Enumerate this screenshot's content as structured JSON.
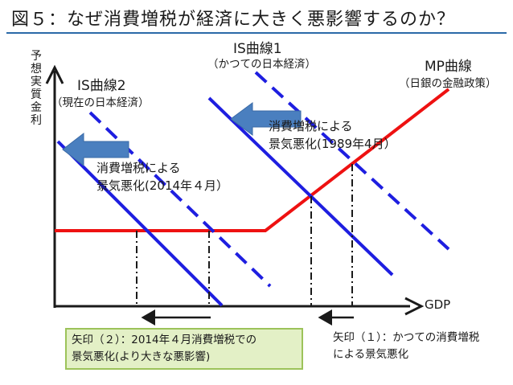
{
  "title": "図５：なぜ消費増税が経済に大きく悪影響するのか？",
  "axes": {
    "y_label": "予想実質金利",
    "x_label": "GDP"
  },
  "curves": {
    "is1": {
      "name": "IS曲線1",
      "note": "（かつての日本経済）"
    },
    "is2": {
      "name": "IS曲線2",
      "note": "（現在の日本経済）"
    },
    "mp": {
      "name": "MP曲線",
      "note": "（日銀の金融政策）"
    }
  },
  "annotations": {
    "shift_1989": {
      "line1": "消費増税による",
      "line2": "景気悪化(1989年4月）"
    },
    "shift_2014": {
      "line1": "消費増税による",
      "line2": "景気悪化(2014年４月）"
    }
  },
  "captions": {
    "arrow1": {
      "line1": "矢印（１）：かつての消費増税",
      "line2": "による景気悪化"
    },
    "arrow2": {
      "line1": "矢印（２）：2014年４月消費増税での",
      "line2": "景気悪化(より大きな悪影響)"
    }
  },
  "colors": {
    "is_curve": "#1e1ee0",
    "mp_curve": "#ee1111",
    "shift_arrow": "#4a7fbf",
    "axis": "#1a1a1a"
  }
}
